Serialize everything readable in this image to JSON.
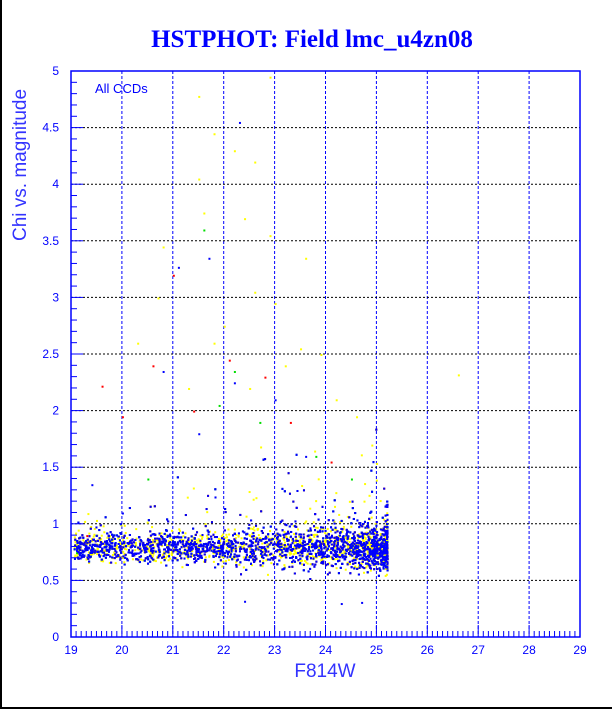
{
  "chart_data": {
    "type": "scatter",
    "title": "HSTPHOT: Field lmc_u4zn08",
    "xlabel": "F814W",
    "ylabel": "Chi vs. magnitude",
    "annotation": "All CCDs",
    "xlim": [
      19,
      29
    ],
    "ylim": [
      0,
      5
    ],
    "xticks": [
      "19",
      "20",
      "21",
      "22",
      "23",
      "24",
      "25",
      "26",
      "27",
      "28",
      "29"
    ],
    "yticks": [
      "0",
      "0.5",
      "1",
      "1.5",
      "2",
      "2.5",
      "3",
      "3.5",
      "4",
      "4.5",
      "5"
    ],
    "grid": true,
    "legend": "none",
    "series": [
      {
        "name": "blue",
        "color": "#0000ff",
        "core_count": 2600,
        "outliers": [
          [
            22.3,
            4.55
          ],
          [
            21.1,
            3.27
          ],
          [
            21.7,
            3.35
          ],
          [
            22.2,
            2.25
          ],
          [
            23.0,
            2.1
          ],
          [
            20.8,
            2.35
          ],
          [
            19.4,
            1.35
          ],
          [
            20.0,
            1.1
          ],
          [
            21.5,
            1.8
          ],
          [
            24.3,
            0.3
          ],
          [
            24.7,
            0.31
          ],
          [
            22.4,
            0.32
          ],
          [
            23.6,
            1.6
          ]
        ]
      },
      {
        "name": "green",
        "color": "#00dd00",
        "core_count": 1400,
        "outliers": [
          [
            21.9,
            2.05
          ],
          [
            22.7,
            1.9
          ],
          [
            21.6,
            3.6
          ],
          [
            20.5,
            1.4
          ],
          [
            23.8,
            1.6
          ],
          [
            19.1,
            0.75
          ],
          [
            24.5,
            1.4
          ],
          [
            25.2,
            0.85
          ],
          [
            22.2,
            2.35
          ]
        ]
      },
      {
        "name": "red",
        "color": "#ff0000",
        "core_count": 900,
        "outliers": [
          [
            19.6,
            2.22
          ],
          [
            20.0,
            1.95
          ],
          [
            21.0,
            3.2
          ],
          [
            22.1,
            2.45
          ],
          [
            22.8,
            2.3
          ],
          [
            23.3,
            1.9
          ],
          [
            20.6,
            2.4
          ],
          [
            19.3,
            0.9
          ],
          [
            24.1,
            1.55
          ],
          [
            21.4,
            2.0
          ]
        ]
      },
      {
        "name": "yellow",
        "color": "#ffff00",
        "core_count": 1100,
        "outliers": [
          [
            21.5,
            4.78
          ],
          [
            22.9,
            4.95
          ],
          [
            21.8,
            4.45
          ],
          [
            22.2,
            4.3
          ],
          [
            21.5,
            4.05
          ],
          [
            22.6,
            4.2
          ],
          [
            21.6,
            3.75
          ],
          [
            22.9,
            3.55
          ],
          [
            20.8,
            3.45
          ],
          [
            23.6,
            3.35
          ],
          [
            22.6,
            3.05
          ],
          [
            23.0,
            2.95
          ],
          [
            22.0,
            2.75
          ],
          [
            23.5,
            2.55
          ],
          [
            21.8,
            2.6
          ],
          [
            24.2,
            2.1
          ],
          [
            23.2,
            2.4
          ],
          [
            22.5,
            2.2
          ],
          [
            24.6,
            1.95
          ],
          [
            26.6,
            2.32
          ],
          [
            21.3,
            2.2
          ],
          [
            20.3,
            2.6
          ],
          [
            24.9,
            1.7
          ],
          [
            20.7,
            3.0
          ],
          [
            22.4,
            3.7
          ],
          [
            23.9,
            2.5
          ]
        ]
      }
    ]
  }
}
